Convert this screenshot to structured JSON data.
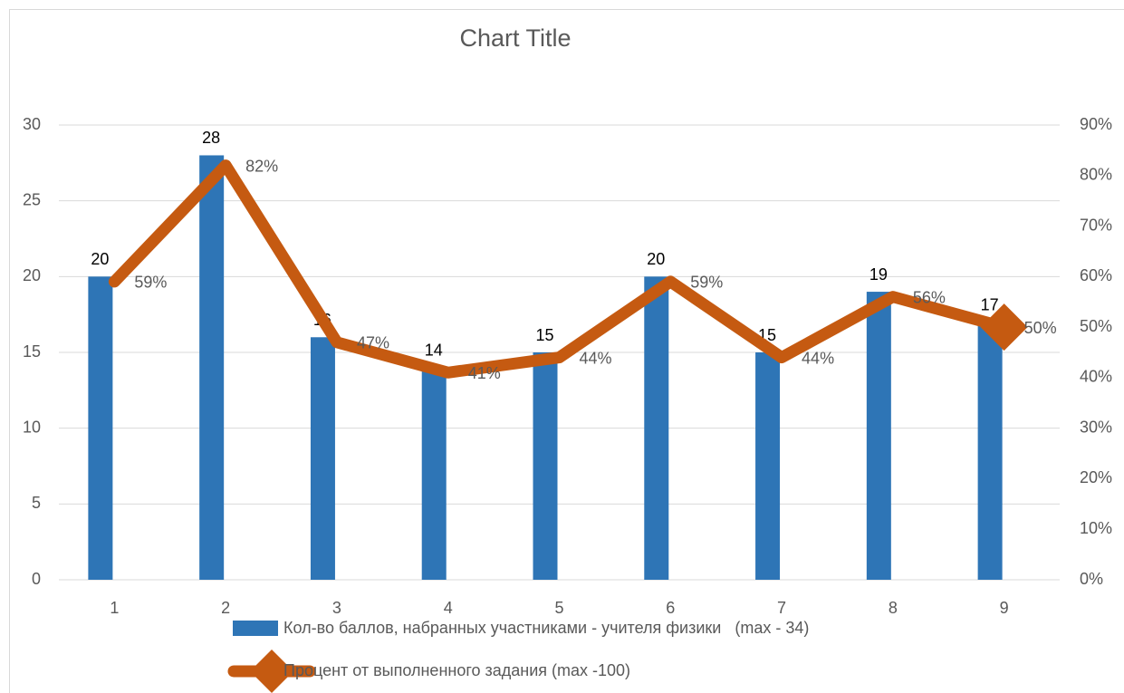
{
  "chart_data": {
    "type": "combo",
    "title": "Chart Title",
    "categories": [
      "1",
      "2",
      "3",
      "4",
      "5",
      "6",
      "7",
      "8",
      "9"
    ],
    "series": [
      {
        "name": "Кол-во баллов, набранных участниками - учителя физики   (max - 34)",
        "type": "bar",
        "color": "#2e75b6",
        "values": [
          20,
          28,
          16,
          14,
          15,
          20,
          15,
          19,
          17
        ]
      },
      {
        "name": "Процент от выполненного задания (max -100)",
        "type": "line",
        "axis": "y2",
        "color": "#c55a11",
        "marker": "diamond",
        "values": [
          59,
          82,
          47,
          41,
          44,
          59,
          44,
          56,
          50
        ],
        "value_labels": [
          "59%",
          "82%",
          "47%",
          "41%",
          "44%",
          "59%",
          "44%",
          "56%",
          "50%"
        ]
      }
    ],
    "ylim": [
      0,
      30
    ],
    "yticks": [
      0,
      5,
      10,
      15,
      20,
      25,
      30
    ],
    "y2lim": [
      0,
      90
    ],
    "y2ticks": [
      {
        "value": 0,
        "label": "0%"
      },
      {
        "value": 10,
        "label": "10%"
      },
      {
        "value": 20,
        "label": "20%"
      },
      {
        "value": 30,
        "label": "30%"
      },
      {
        "value": 40,
        "label": "40%"
      },
      {
        "value": 50,
        "label": "50%"
      },
      {
        "value": 60,
        "label": "60%"
      },
      {
        "value": 70,
        "label": "70%"
      },
      {
        "value": 80,
        "label": "80%"
      },
      {
        "value": 90,
        "label": "90%"
      }
    ],
    "grid": true,
    "legend": "bottom"
  }
}
